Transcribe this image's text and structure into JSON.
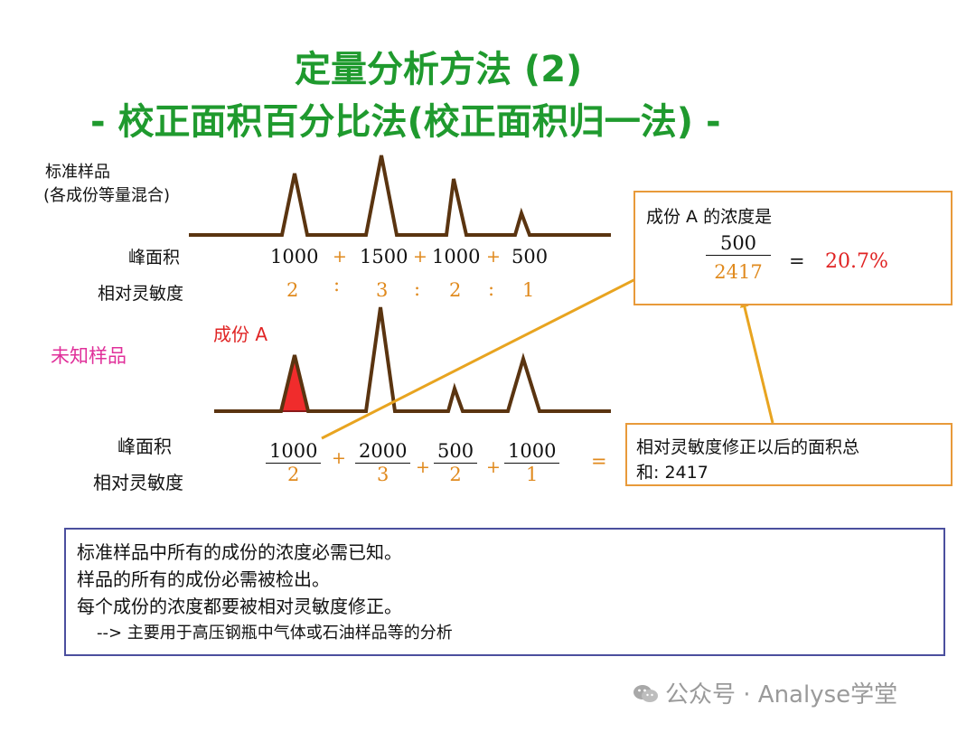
{
  "title": {
    "line1": "定量分析方法 (2)",
    "line2": "- 校正面积百分比法(校正面积归一法) -"
  },
  "standard": {
    "label_line1": "标准样品",
    "label_line2": "(各成份等量混合)",
    "area_label": "峰面积",
    "sens_label": "相对灵敏度",
    "areas": [
      "1000",
      "1500",
      "1000",
      "500"
    ],
    "plus": "+",
    "colon": ":",
    "sensitivities": [
      "2",
      "3",
      "2",
      "1"
    ]
  },
  "unknown": {
    "label": "未知样品",
    "component_label": "成份 A",
    "area_label": "峰面积",
    "sens_label": "相对灵敏度",
    "fractions": [
      {
        "num": "1000",
        "den": "2"
      },
      {
        "num": "2000",
        "den": "3"
      },
      {
        "num": "500",
        "den": "2"
      },
      {
        "num": "1000",
        "den": "1"
      }
    ],
    "plus": "+",
    "equals": "="
  },
  "result_box": {
    "title": "成份 A 的浓度是",
    "numerator": "500",
    "denominator": "2417",
    "equals": "=",
    "result": "20.7%"
  },
  "sum_box": {
    "line1": "相对灵敏度修正以后的面积总",
    "line2": "和:  2417"
  },
  "notes": {
    "line1": "标准样品中所有的成份的浓度必需已知。",
    "line2": "样品的所有的成份必需被检出。",
    "line3": "每个成份的浓度都要被相对灵敏度修正。",
    "line4": "-->  主要用于高压钢瓶中气体或石油样品等的分析"
  },
  "watermark": "公众号 · Analyse学堂",
  "colors": {
    "title": "#1f9a2e",
    "orange": "#e08a1e",
    "red": "#e02424",
    "pink": "#e0309a",
    "trace": "#5a3410",
    "box_border": "#e89a3a",
    "notes_border": "#4b4f9e"
  }
}
